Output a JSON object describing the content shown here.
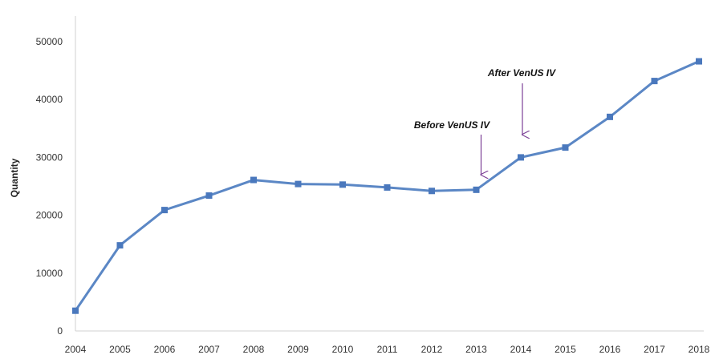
{
  "chart_data": {
    "type": "line",
    "title": "",
    "xlabel": "",
    "ylabel": "Quantity",
    "x": [
      "2004",
      "2005",
      "2006",
      "2007",
      "2008",
      "2009",
      "2010",
      "2011",
      "2012",
      "2013",
      "2014",
      "2015",
      "2016",
      "2017",
      "2018"
    ],
    "series": [
      {
        "values": [
          3500,
          14800,
          20900,
          23400,
          26100,
          25400,
          25300,
          24800,
          24200,
          24400,
          30000,
          31700,
          37000,
          43200,
          46600
        ]
      }
    ],
    "ylim": [
      0,
      50000
    ],
    "yticks": [
      0,
      10000,
      20000,
      30000,
      40000,
      50000
    ],
    "grid": false,
    "legend": "none",
    "line_color": "#5b87c5",
    "marker_color": "#4a78bd",
    "annotations": [
      {
        "text": "Before VenUS IV",
        "x": "2013",
        "color": "#7b3f96"
      },
      {
        "text": "After VenUS IV",
        "x": "2014",
        "color": "#7b3f96"
      }
    ]
  }
}
